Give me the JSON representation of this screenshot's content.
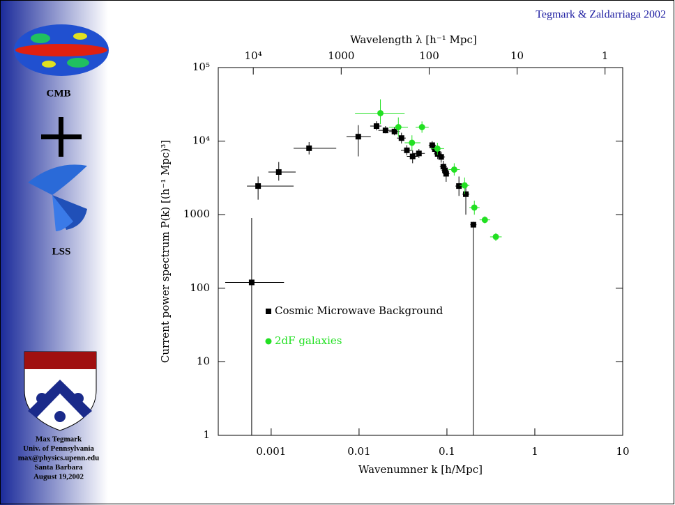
{
  "slide": {
    "credit": "Tegmark & Zaldarriaga 2002",
    "cmb_label": "CMB",
    "lss_label": "LSS",
    "footer": [
      "Max Tegmark",
      "Univ. of Pennsylvania",
      "max@physics.upenn.edu",
      "Santa Barbara",
      "August 19,2002"
    ]
  },
  "chart_data": {
    "type": "scatter",
    "xlabel": "Wavenumner k [h/Mpc]",
    "ylabel": "Current power spectrum P(k) [(h⁻¹ Mpc)³]",
    "x2label": "Wavelength λ [h⁻¹ Mpc]",
    "log_x": true,
    "log_y": true,
    "log_x2": true,
    "legend": "lower left",
    "xlim": [
      0.00025,
      10
    ],
    "xticks": [
      0.001,
      0.01,
      0.1,
      1,
      10
    ],
    "ylim": [
      1,
      100000
    ],
    "yticks": [
      1,
      10,
      100,
      1000,
      {
        "value": 10000,
        "label": "10⁴"
      },
      {
        "value": 100000,
        "label": "10⁵"
      }
    ],
    "x2lim": [
      25000,
      0.63
    ],
    "x2ticks": [
      {
        "value": 10000,
        "label": "10⁴"
      },
      1000,
      100,
      10,
      1
    ],
    "series": [
      {
        "name": "Cosmic Microwave Background",
        "color": "#000000",
        "marker": "square",
        "x": [
          0.0006,
          0.00071,
          0.00122,
          0.0027,
          0.0098,
          0.0158,
          0.02,
          0.0253,
          0.0304,
          0.035,
          0.0407,
          0.048,
          0.068,
          0.073,
          0.0785,
          0.086,
          0.091,
          0.095,
          0.098,
          0.137,
          0.164,
          0.2
        ],
        "values": [
          120,
          2450,
          3800,
          8000,
          11500,
          16000,
          14000,
          13500,
          11000,
          7500,
          6200,
          6800,
          8800,
          7800,
          6700,
          6100,
          4500,
          4000,
          3600,
          2450,
          1900,
          730
        ],
        "x_low": [
          0.0003,
          0.00053,
          0.00093,
          0.0018,
          0.0072,
          0.0134,
          0.0166,
          0.022,
          0.027,
          0.03,
          0.035,
          0.041,
          0.062,
          0.066,
          0.071,
          0.078,
          0.083,
          0.087,
          0.09,
          0.125,
          0.15,
          0.184
        ],
        "x_high": [
          0.0014,
          0.0018,
          0.0019,
          0.0055,
          0.0136,
          0.018,
          0.024,
          0.029,
          0.034,
          0.04,
          0.047,
          0.056,
          0.075,
          0.08,
          0.087,
          0.095,
          0.1,
          0.104,
          0.107,
          0.15,
          0.18,
          0.217
        ],
        "y_low": [
          1,
          1600,
          2900,
          6600,
          6200,
          14000,
          12800,
          12000,
          9300,
          6400,
          5000,
          5900,
          7600,
          6700,
          5700,
          5100,
          3800,
          3300,
          2800,
          1800,
          1000,
          1
        ],
        "y_high": [
          900,
          3300,
          5200,
          9700,
          16500,
          18600,
          16000,
          15500,
          13000,
          8800,
          7500,
          7800,
          10000,
          9000,
          7800,
          7200,
          5400,
          4800,
          4400,
          3300,
          2700,
          800
        ]
      },
      {
        "name": "2dF galaxies",
        "color": "#22e022",
        "marker": "circle",
        "x": [
          0.0175,
          0.028,
          0.04,
          0.052,
          0.078,
          0.121,
          0.159,
          0.205,
          0.27,
          0.36
        ],
        "values": [
          24000,
          15500,
          9500,
          15500,
          7900,
          4100,
          2500,
          1250,
          850,
          500
        ],
        "x_low": [
          0.009,
          0.022,
          0.033,
          0.044,
          0.066,
          0.104,
          0.14,
          0.18,
          0.235,
          0.31
        ],
        "x_high": [
          0.033,
          0.036,
          0.05,
          0.062,
          0.093,
          0.14,
          0.18,
          0.235,
          0.31,
          0.42
        ],
        "y_low": [
          17000,
          11500,
          7500,
          13000,
          6500,
          3400,
          1900,
          1000,
          760,
          440
        ],
        "y_high": [
          37000,
          21000,
          12000,
          18500,
          9500,
          5000,
          3200,
          1550,
          950,
          560
        ]
      }
    ]
  }
}
